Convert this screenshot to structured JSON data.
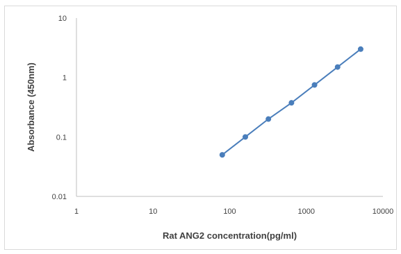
{
  "chart_data": {
    "type": "line",
    "xlabel": "Rat ANG2 concentration(pg/ml)",
    "ylabel": "Absorbance (450nm)",
    "x_scale": "log",
    "y_scale": "log",
    "xlim": [
      1,
      10000
    ],
    "ylim": [
      0.01,
      10
    ],
    "x_ticks": [
      "1",
      "10",
      "100",
      "1000",
      "10000"
    ],
    "y_ticks": [
      "0.01",
      "0.1",
      "1",
      "10"
    ],
    "grid": false,
    "legend": "none",
    "series": [
      {
        "x": [
          80,
          160,
          320,
          640,
          1280,
          2560,
          5120
        ],
        "y": [
          0.05,
          0.1,
          0.2,
          0.375,
          0.75,
          1.5,
          3.0
        ],
        "color": "#4a7ebb",
        "marker": "circle"
      }
    ]
  }
}
